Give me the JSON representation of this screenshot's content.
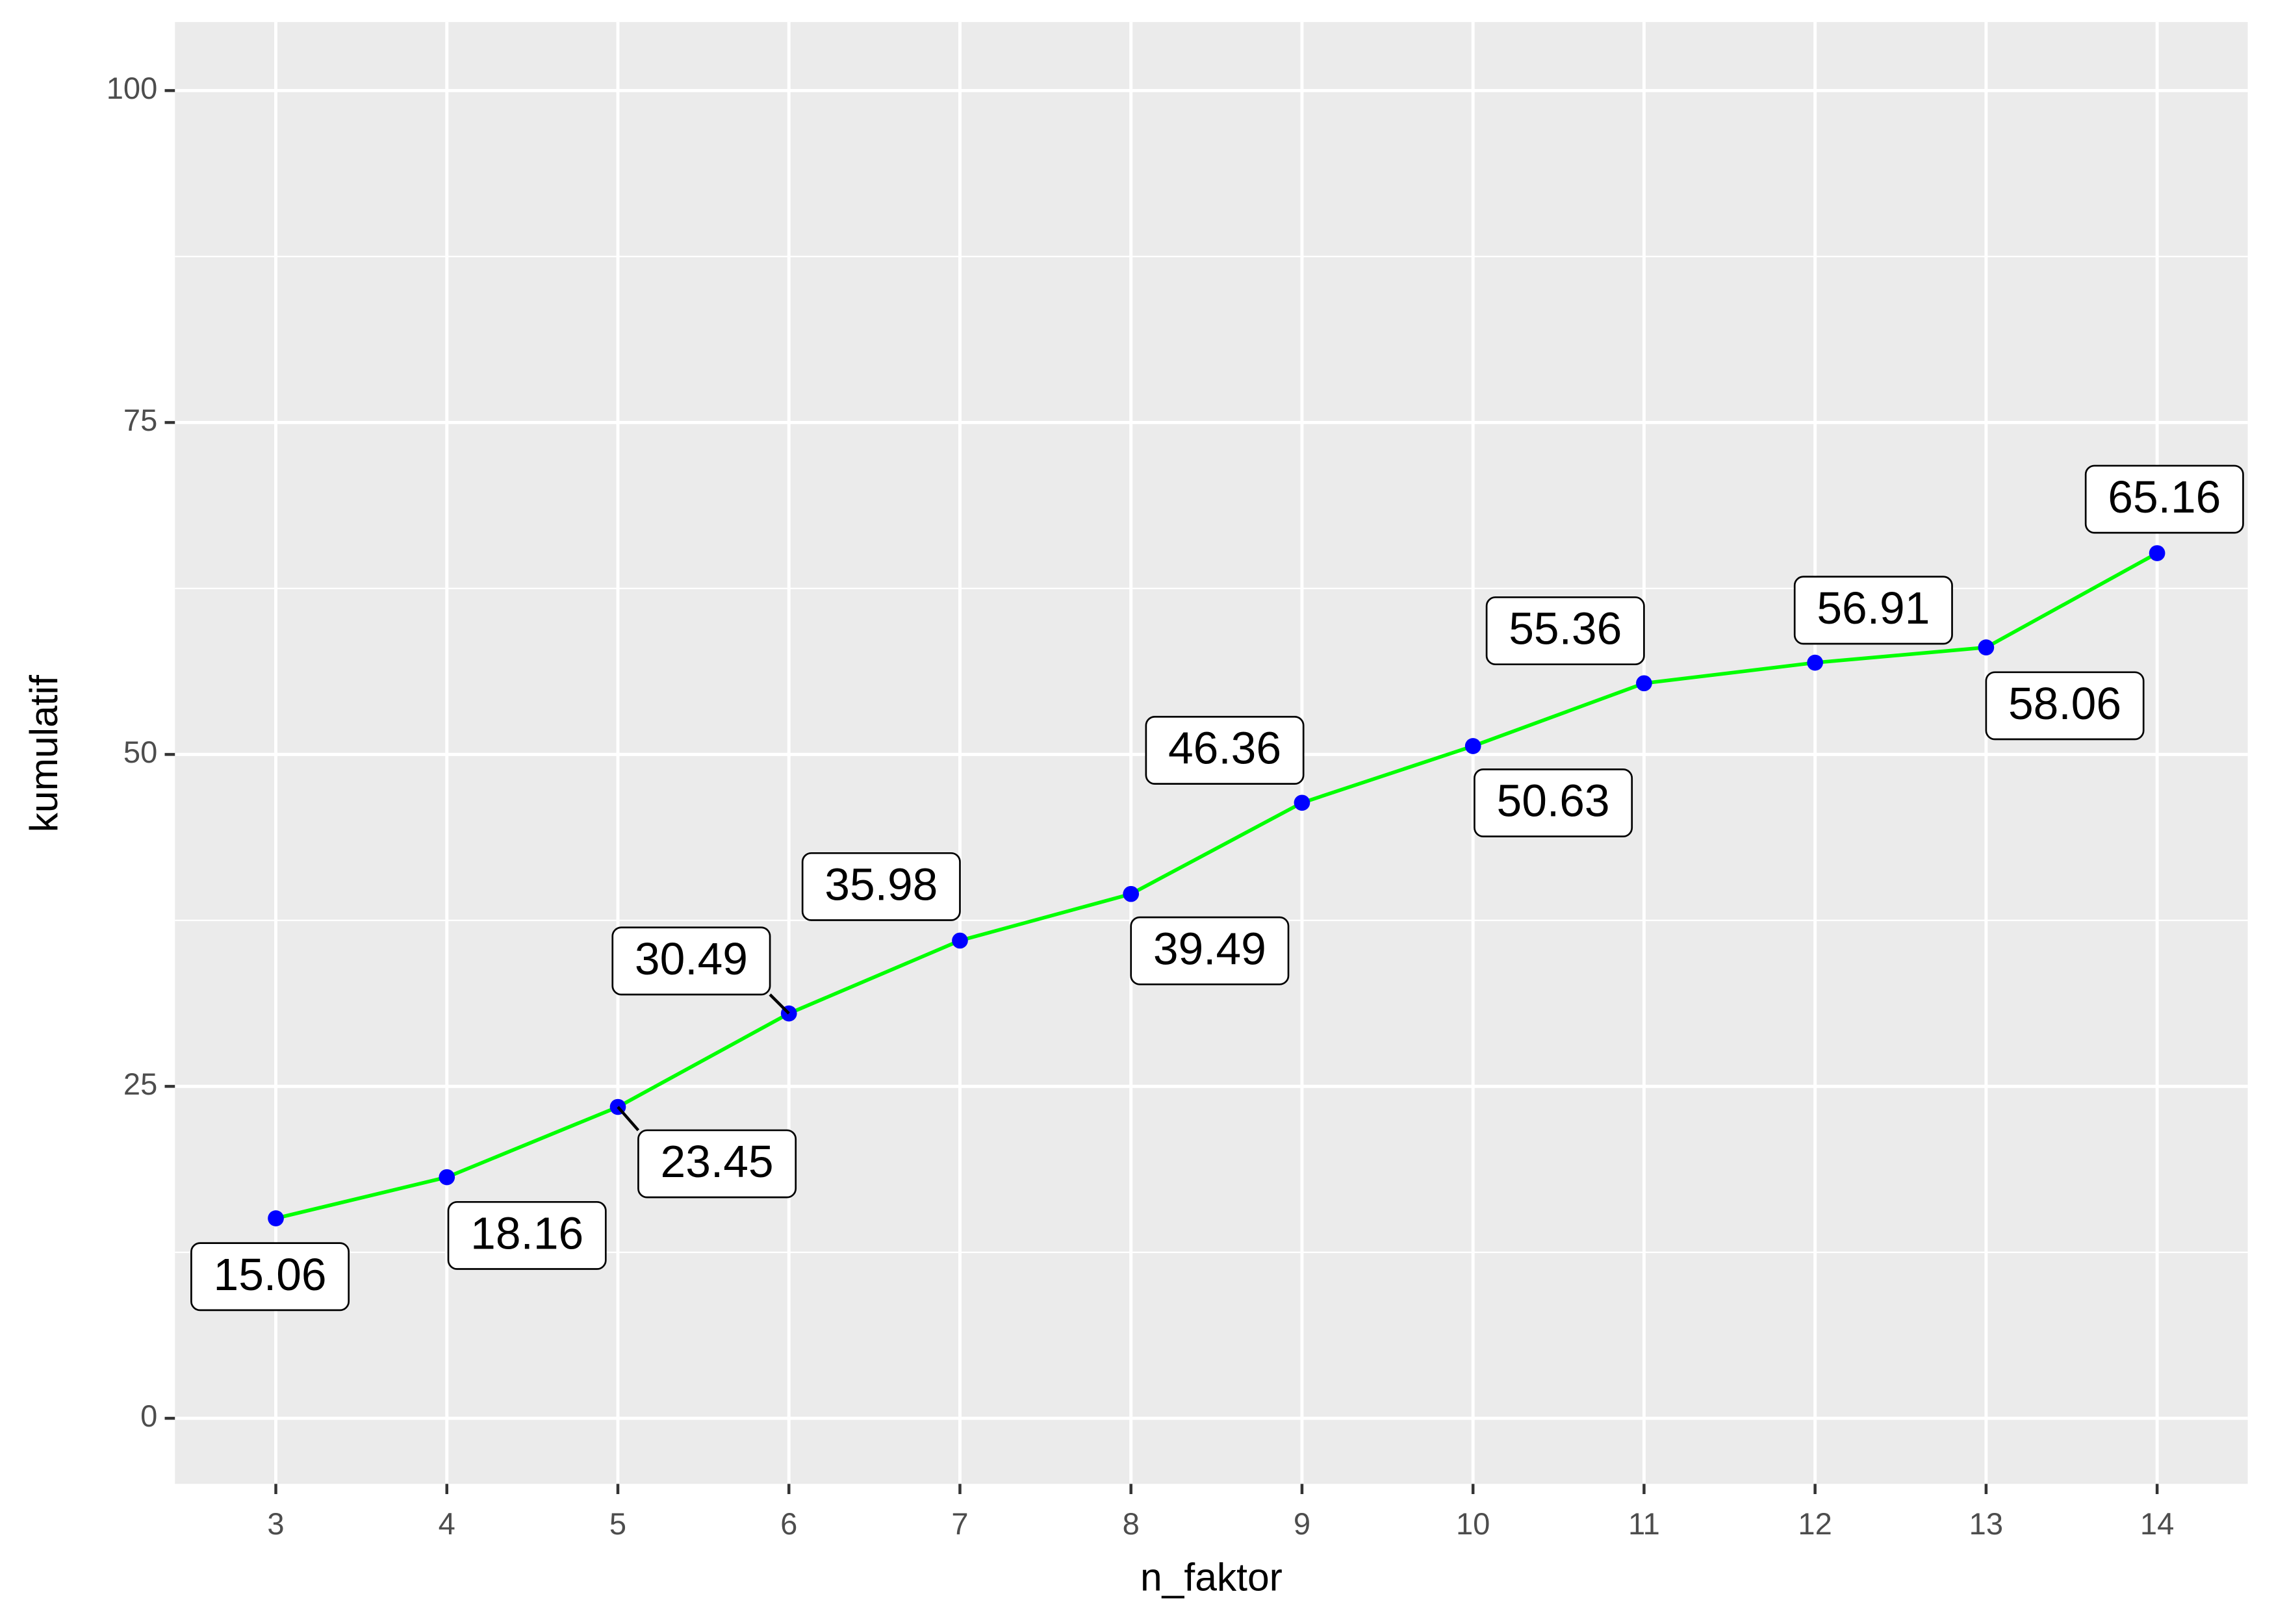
{
  "chart_data": {
    "type": "line",
    "x_label": "n_faktor",
    "y_label": "kumulatif",
    "x": [
      3,
      4,
      5,
      6,
      7,
      8,
      9,
      10,
      11,
      12,
      13,
      14
    ],
    "series": [
      {
        "color": "#00ff00",
        "point_color": "#0000ff",
        "values": [
          15.06,
          18.16,
          23.45,
          30.49,
          35.98,
          39.49,
          46.36,
          50.63,
          55.36,
          56.91,
          58.06,
          65.16
        ]
      }
    ],
    "xlim": [
      2.41,
      14.53
    ],
    "ylim": [
      -4.94,
      105.16
    ],
    "xticks": [
      3,
      4,
      5,
      6,
      7,
      8,
      9,
      10,
      11,
      12,
      13,
      14
    ],
    "yticks": [
      0,
      25,
      50,
      75,
      100
    ],
    "grid": true,
    "value_labels_shown": true
  }
}
